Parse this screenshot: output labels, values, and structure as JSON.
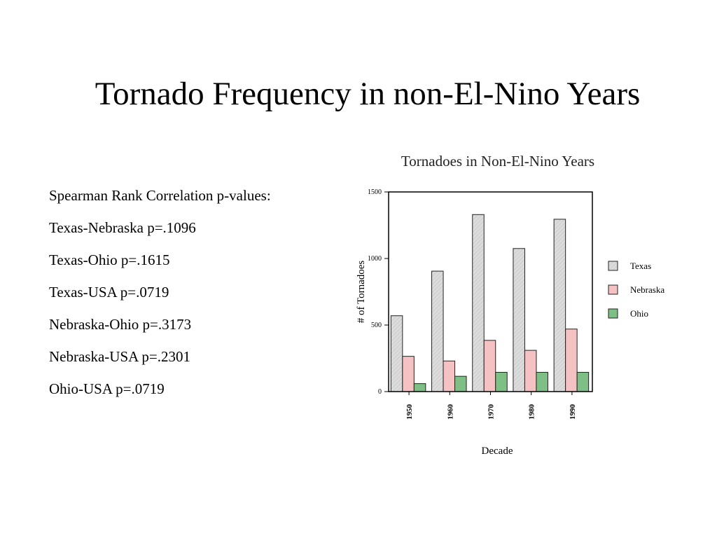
{
  "slide": {
    "title": "Tornado Frequency in non-El-Nino Years"
  },
  "stats": {
    "heading": "Spearman Rank Correlation p-values:",
    "lines": [
      "Texas-Nebraska p=.1096",
      "Texas-Ohio p=.1615",
      "Texas-USA p=.0719",
      "Nebraska-Ohio p=.3173",
      "Nebraska-USA p=.2301",
      "Ohio-USA p=.0719"
    ]
  },
  "chart_data": {
    "type": "bar",
    "title": "Tornadoes in Non-El-Nino Years",
    "xlabel": "Decade",
    "ylabel": "# of Tornadoes",
    "categories": [
      "1950",
      "1960",
      "1970",
      "1980",
      "1990"
    ],
    "ylim": [
      0,
      1500
    ],
    "yticks": [
      "0",
      "500",
      "1000",
      "1500"
    ],
    "grid": false,
    "legend_position": "right",
    "series": [
      {
        "name": "Texas",
        "values": [
          570,
          905,
          1330,
          1075,
          1295
        ],
        "color": "#d9d9d9"
      },
      {
        "name": "Nebraska",
        "values": [
          265,
          230,
          385,
          310,
          470
        ],
        "color": "#f4c2c2"
      },
      {
        "name": "Ohio",
        "values": [
          60,
          115,
          145,
          145,
          145
        ],
        "color": "#7dbf85"
      }
    ]
  }
}
